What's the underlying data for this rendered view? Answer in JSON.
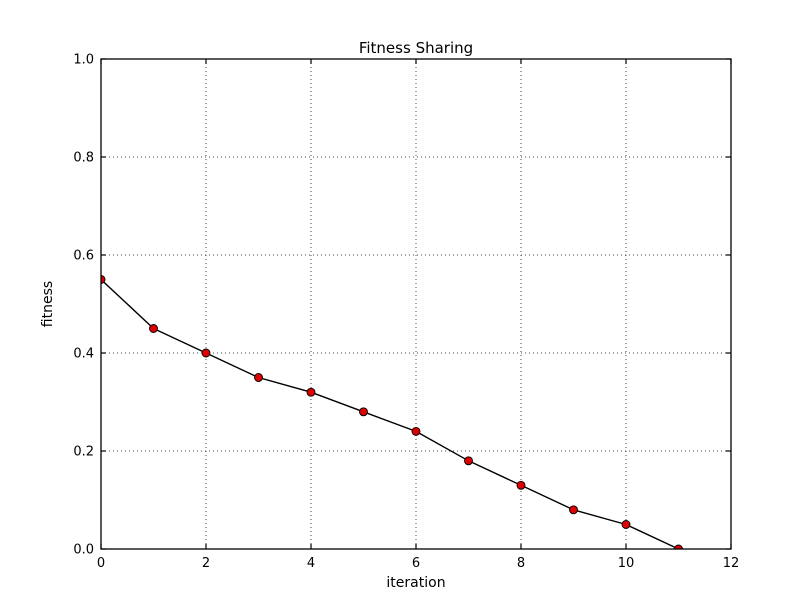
{
  "chart_data": {
    "type": "line",
    "title": "Fitness Sharing",
    "xlabel": "iteration",
    "ylabel": "fitness",
    "x": [
      0,
      1,
      2,
      3,
      4,
      5,
      6,
      7,
      8,
      9,
      10,
      11
    ],
    "y": [
      0.55,
      0.45,
      0.4,
      0.35,
      0.32,
      0.28,
      0.24,
      0.18,
      0.13,
      0.08,
      0.05,
      0.0
    ],
    "series_name": "fitness",
    "xlim": [
      0,
      12
    ],
    "ylim": [
      0.0,
      1.0
    ],
    "xticks": [
      0,
      2,
      4,
      6,
      8,
      10,
      12
    ],
    "yticks": [
      0.0,
      0.2,
      0.4,
      0.6,
      0.8,
      1.0
    ],
    "ytick_labels": [
      "0.0",
      "0.2",
      "0.4",
      "0.6",
      "0.8",
      "1.0"
    ],
    "xtick_labels": [
      "0",
      "2",
      "4",
      "6",
      "8",
      "10",
      "12"
    ],
    "grid": true,
    "grid_style": "dotted",
    "legend": "none",
    "colors": {
      "line": "#000000",
      "marker_fill": "#dd0000",
      "marker_edge": "#000000",
      "grid": "#444444",
      "spine": "#000000",
      "background": "#ffffff"
    }
  }
}
